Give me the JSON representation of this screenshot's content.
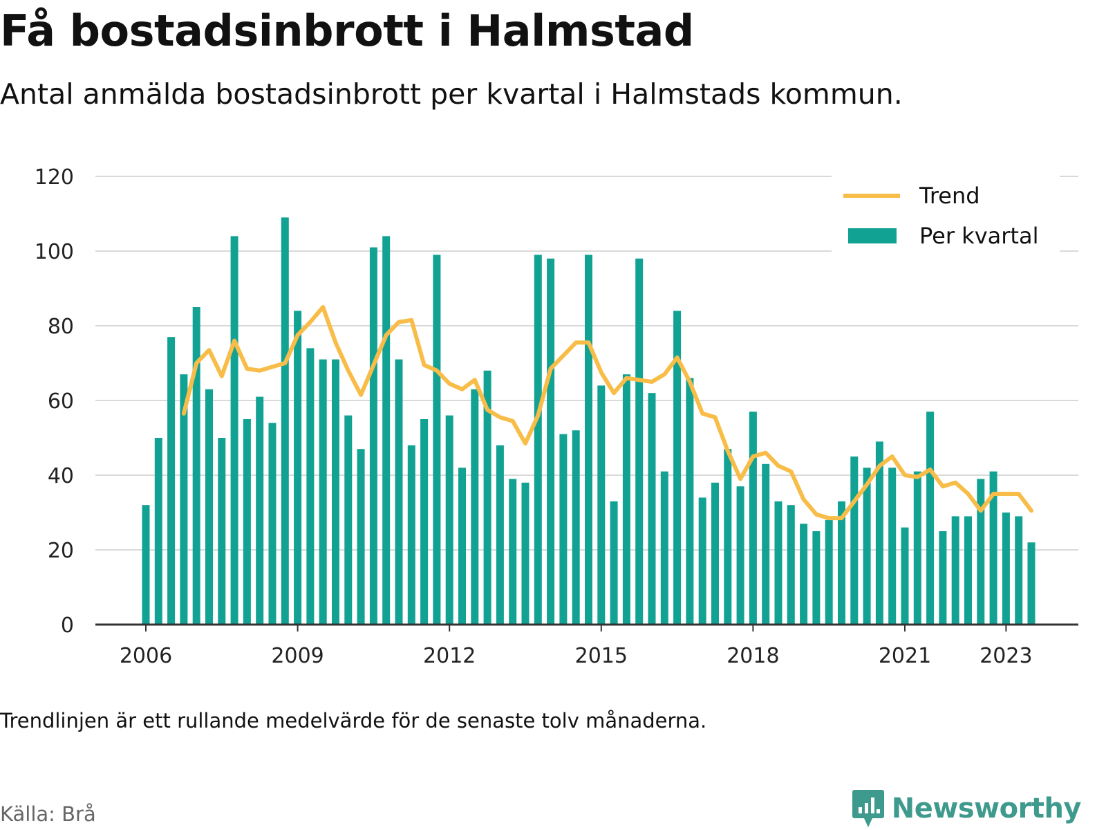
{
  "header": {
    "title": "Få bostadsinbrott i Halmstad",
    "subtitle": "Antal anmälda bostadsinbrott per kvartal i Halmstads kommun."
  },
  "footer": {
    "note": "Trendlinjen är ett rullande medelvärde för de senaste tolv månaderna.",
    "source": "Källa: Brå",
    "brand": "Newsworthy"
  },
  "colors": {
    "bars": "#12a293",
    "trend": "#f8bd48",
    "grid": "#d9d9d9",
    "axis": "#333333",
    "brand": "#3f9a8e"
  },
  "chart_data": {
    "type": "bar",
    "y_tick_labels": [
      "0",
      "20",
      "40",
      "60",
      "80",
      "100",
      "120"
    ],
    "ylim": [
      0,
      120
    ],
    "x_tick_labels": [
      "2006",
      "2009",
      "2012",
      "2015",
      "2018",
      "2021",
      "2023"
    ],
    "legend": [
      "Trend",
      "Per kvartal"
    ],
    "grid": true,
    "legend_position": "top-right",
    "series": [
      {
        "name": "Per kvartal",
        "type": "bar",
        "x": [
          "2006 Q1",
          "2006 Q2",
          "2006 Q3",
          "2006 Q4",
          "2007 Q1",
          "2007 Q2",
          "2007 Q3",
          "2007 Q4",
          "2008 Q1",
          "2008 Q2",
          "2008 Q3",
          "2008 Q4",
          "2009 Q1",
          "2009 Q2",
          "2009 Q3",
          "2009 Q4",
          "2010 Q1",
          "2010 Q2",
          "2010 Q3",
          "2010 Q4",
          "2011 Q1",
          "2011 Q2",
          "2011 Q3",
          "2011 Q4",
          "2012 Q1",
          "2012 Q2",
          "2012 Q3",
          "2012 Q4",
          "2013 Q1",
          "2013 Q2",
          "2013 Q3",
          "2013 Q4",
          "2014 Q1",
          "2014 Q2",
          "2014 Q3",
          "2014 Q4",
          "2015 Q1",
          "2015 Q2",
          "2015 Q3",
          "2015 Q4",
          "2016 Q1",
          "2016 Q2",
          "2016 Q3",
          "2016 Q4",
          "2017 Q1",
          "2017 Q2",
          "2017 Q3",
          "2017 Q4",
          "2018 Q1",
          "2018 Q2",
          "2018 Q3",
          "2018 Q4",
          "2019 Q1",
          "2019 Q2",
          "2019 Q3",
          "2019 Q4",
          "2020 Q1",
          "2020 Q2",
          "2020 Q3",
          "2020 Q4",
          "2021 Q1",
          "2021 Q2",
          "2021 Q3",
          "2021 Q4",
          "2022 Q1",
          "2022 Q2",
          "2022 Q3",
          "2022 Q4",
          "2023 Q1",
          "2023 Q2",
          "2023 Q3"
        ],
        "values": [
          32,
          50,
          77,
          67,
          85,
          63,
          50,
          104,
          55,
          61,
          54,
          109,
          84,
          74,
          71,
          71,
          56,
          47,
          101,
          104,
          71,
          48,
          55,
          99,
          56,
          42,
          63,
          68,
          48,
          39,
          38,
          99,
          98,
          51,
          52,
          99,
          64,
          33,
          67,
          98,
          62,
          41,
          84,
          66,
          34,
          38,
          47,
          37,
          57,
          43,
          33,
          32,
          27,
          25,
          28,
          33,
          45,
          42,
          49,
          42,
          26,
          41,
          57,
          25,
          29,
          29,
          39,
          41,
          30,
          29,
          22
        ]
      },
      {
        "name": "Trend",
        "type": "line",
        "x": [
          "2006 Q4",
          "2007 Q1",
          "2007 Q2",
          "2007 Q3",
          "2007 Q4",
          "2008 Q1",
          "2008 Q2",
          "2008 Q3",
          "2008 Q4",
          "2009 Q1",
          "2009 Q2",
          "2009 Q3",
          "2009 Q4",
          "2010 Q1",
          "2010 Q2",
          "2010 Q3",
          "2010 Q4",
          "2011 Q1",
          "2011 Q2",
          "2011 Q3",
          "2011 Q4",
          "2012 Q1",
          "2012 Q2",
          "2012 Q3",
          "2012 Q4",
          "2013 Q1",
          "2013 Q2",
          "2013 Q3",
          "2013 Q4",
          "2014 Q1",
          "2014 Q2",
          "2014 Q3",
          "2014 Q4",
          "2015 Q1",
          "2015 Q2",
          "2015 Q3",
          "2015 Q4",
          "2016 Q1",
          "2016 Q2",
          "2016 Q3",
          "2016 Q4",
          "2017 Q1",
          "2017 Q2",
          "2017 Q3",
          "2017 Q4",
          "2018 Q1",
          "2018 Q2",
          "2018 Q3",
          "2018 Q4",
          "2019 Q1",
          "2019 Q2",
          "2019 Q3",
          "2019 Q4",
          "2020 Q1",
          "2020 Q2",
          "2020 Q3",
          "2020 Q4",
          "2021 Q1",
          "2021 Q2",
          "2021 Q3",
          "2021 Q4",
          "2022 Q1",
          "2022 Q2",
          "2022 Q3",
          "2022 Q4",
          "2023 Q1",
          "2023 Q2",
          "2023 Q3"
        ],
        "values": [
          56.5,
          70,
          73.5,
          66.5,
          76,
          68.5,
          68,
          69,
          70,
          77.5,
          81,
          85,
          75.5,
          68,
          61.5,
          69.5,
          77.5,
          81,
          81.5,
          69.5,
          68,
          64.5,
          63,
          65.5,
          57.5,
          55.5,
          54.5,
          48.5,
          56,
          68.5,
          72,
          75.5,
          75.5,
          67.5,
          62,
          66,
          65.5,
          65,
          67,
          71.5,
          65,
          56.5,
          55.5,
          46.5,
          39,
          45,
          46,
          42.5,
          41,
          33.5,
          29.5,
          28.5,
          28.5,
          33,
          37.5,
          42.5,
          45,
          40,
          39.5,
          41.5,
          37,
          38,
          35,
          30.5,
          35,
          35,
          35,
          30.5
        ]
      }
    ]
  }
}
